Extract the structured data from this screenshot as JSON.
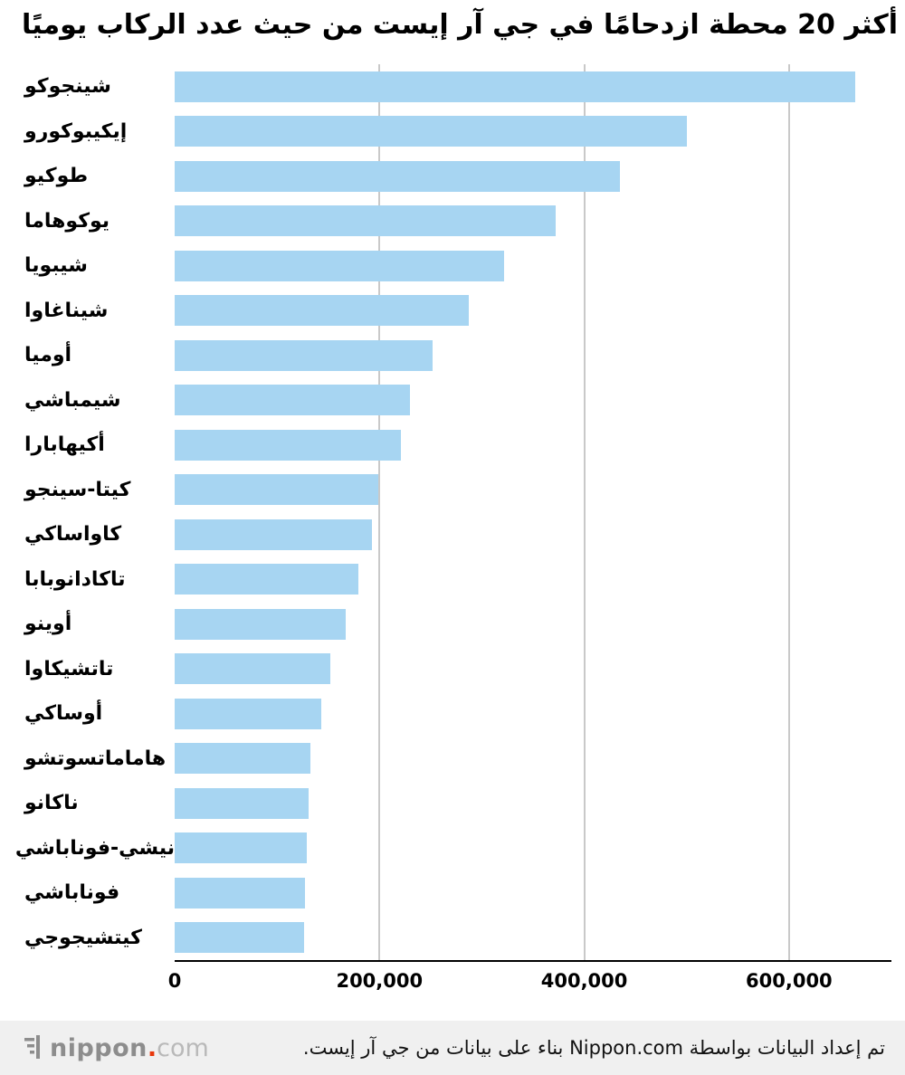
{
  "title": "أكثر 20 محطة ازدحامًا في جي آر إيست من حيث عدد الركاب يوميًا",
  "chart_data": {
    "type": "bar",
    "orientation": "horizontal",
    "title": "أكثر 20 محطة ازدحامًا في جي آر إيست من حيث عدد الركاب يوميًا",
    "categories": [
      "شينجوكو",
      "إيكيبوكورو",
      "طوكيو",
      "يوكوهاما",
      "شيبويا",
      "شيناغاوا",
      "أوميا",
      "شيمباشي",
      "أكيهابارا",
      "كيتا-سينجو",
      "كاواساكي",
      "تاكادانوبابا",
      "أوينو",
      "تاتشيكاوا",
      "أوساكي",
      "هاماماتسوتشو",
      "ناكانو",
      "نيشي-فوناباشي",
      "فوناباشي",
      "كيتشيجوجي"
    ],
    "values": [
      665000,
      500000,
      435000,
      372000,
      322000,
      287000,
      252000,
      230000,
      221000,
      199000,
      193000,
      179000,
      167000,
      152000,
      143000,
      133000,
      131000,
      129000,
      127000,
      126000
    ],
    "xlabel": "",
    "ylabel": "",
    "xlim": [
      0,
      700000
    ],
    "x_ticks": [
      0,
      200000,
      400000,
      600000
    ],
    "x_tick_labels": [
      "0",
      "200,000",
      "400,000",
      "600,000"
    ],
    "grid": true,
    "legend": false,
    "bar_color": "#a7d5f2",
    "gridline_color": "#c9c9c9"
  },
  "footer": {
    "logo_text": "nippon",
    "logo_dot": ".",
    "logo_suffix": "com",
    "attribution": "تم إعداد البيانات بواسطة Nippon.com بناء على بيانات من جي آر إيست.",
    "logo_colors": {
      "main": "#8d8d8d",
      "dot": "#e8380d",
      "suffix": "#b9b9b9"
    }
  }
}
